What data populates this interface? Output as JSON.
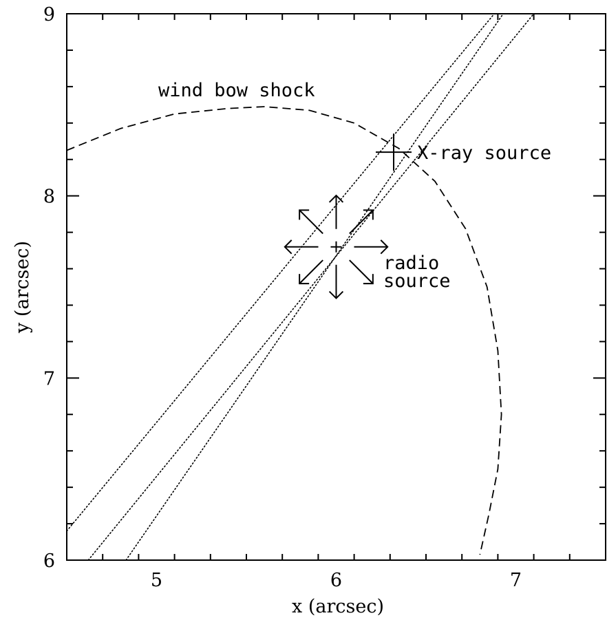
{
  "chart_data": {
    "type": "line",
    "xlabel": "x (arcsec)",
    "ylabel": "y (arcsec)",
    "xlim": [
      4.5,
      7.5
    ],
    "ylim": [
      6,
      9
    ],
    "x_ticks": [
      5,
      6,
      7
    ],
    "y_ticks": [
      6,
      7,
      8,
      9
    ],
    "grid": false,
    "series": [
      {
        "name": "wind bow shock",
        "style": "dashed",
        "x": [
          4.5,
          4.8,
          5.1,
          5.4,
          5.6,
          5.85,
          6.1,
          6.35,
          6.55,
          6.72,
          6.84,
          6.9,
          6.92,
          6.9,
          6.85,
          6.8
        ],
        "y": [
          8.25,
          8.37,
          8.45,
          8.48,
          8.49,
          8.47,
          8.4,
          8.26,
          8.08,
          7.82,
          7.5,
          7.15,
          6.8,
          6.5,
          6.25,
          6.03
        ]
      },
      {
        "style": "dotted",
        "x": [
          4.5,
          6.88
        ],
        "y": [
          6.16,
          9.0
        ]
      },
      {
        "style": "dotted",
        "x": [
          4.62,
          7.1
        ],
        "y": [
          6.0,
          9.0
        ]
      },
      {
        "style": "dotted",
        "x": [
          4.83,
          6.93
        ],
        "y": [
          6.0,
          9.0
        ]
      }
    ],
    "markers": [
      {
        "name": "radio source",
        "label_lines": [
          "radio",
          "source"
        ],
        "x": 6.0,
        "y": 7.72,
        "arrow_length": 0.54
      },
      {
        "name": "X-ray source",
        "label": "X-ray source",
        "x": 6.32,
        "y": 8.24,
        "err_x": 0.1,
        "err_y": 0.1
      }
    ],
    "annotations": [
      {
        "text": "wind bow shock",
        "x": 4.88,
        "y": 8.56
      }
    ]
  }
}
